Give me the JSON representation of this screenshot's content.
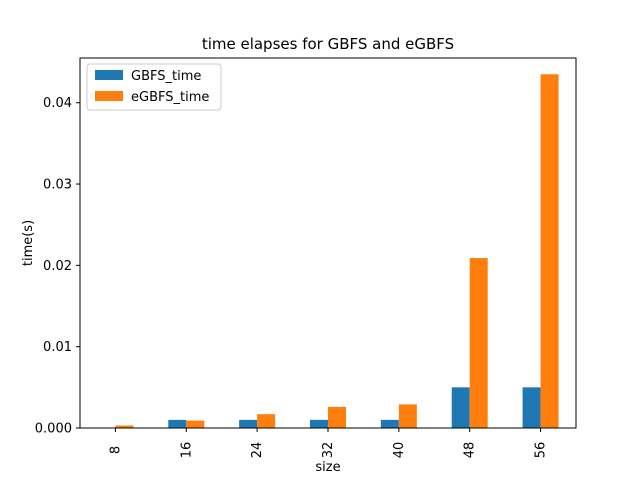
{
  "chart_data": {
    "type": "bar",
    "title": "time elapses for GBFS and eGBFS",
    "xlabel": "size",
    "ylabel": "time(s)",
    "categories": [
      "8",
      "16",
      "24",
      "32",
      "40",
      "48",
      "56"
    ],
    "series": [
      {
        "name": "GBFS_time",
        "color": "#1f77b4",
        "values": [
          0.0,
          0.001,
          0.001,
          0.001,
          0.001,
          0.005,
          0.005
        ]
      },
      {
        "name": "eGBFS_time",
        "color": "#ff7f0e",
        "values": [
          0.0003,
          0.0009,
          0.0017,
          0.0026,
          0.0029,
          0.0209,
          0.0435
        ]
      }
    ],
    "ylim": [
      0,
      0.0455
    ],
    "yticks": [
      "0.000",
      "0.01",
      "0.02",
      "0.03",
      "0.04"
    ],
    "ytick_values": [
      0,
      0.01,
      0.02,
      0.03,
      0.04
    ],
    "grid": false,
    "legend_position": "top-left"
  }
}
